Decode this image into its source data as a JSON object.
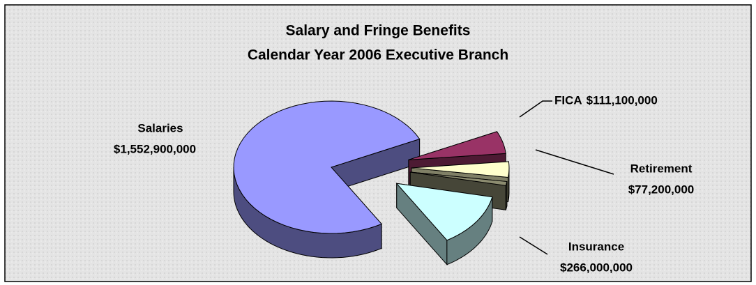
{
  "chart_data": {
    "type": "pie",
    "title": "Salary and Fringe Benefits",
    "subtitle": "Calendar Year 2006 Executive Branch",
    "categories": [
      "Salaries",
      "FICA",
      "Retirement",
      null,
      "Insurance"
    ],
    "values": [
      1552900000,
      111100000,
      77200000,
      20000000,
      266000000
    ],
    "value_labels": [
      "$1,552,900,000",
      "$111,100,000",
      "$77,200,000",
      null,
      "$266,000,000"
    ],
    "colors": [
      "#9999ff",
      "#993366",
      "#ffffcc",
      "#8c8c70",
      "#ccffff"
    ]
  }
}
